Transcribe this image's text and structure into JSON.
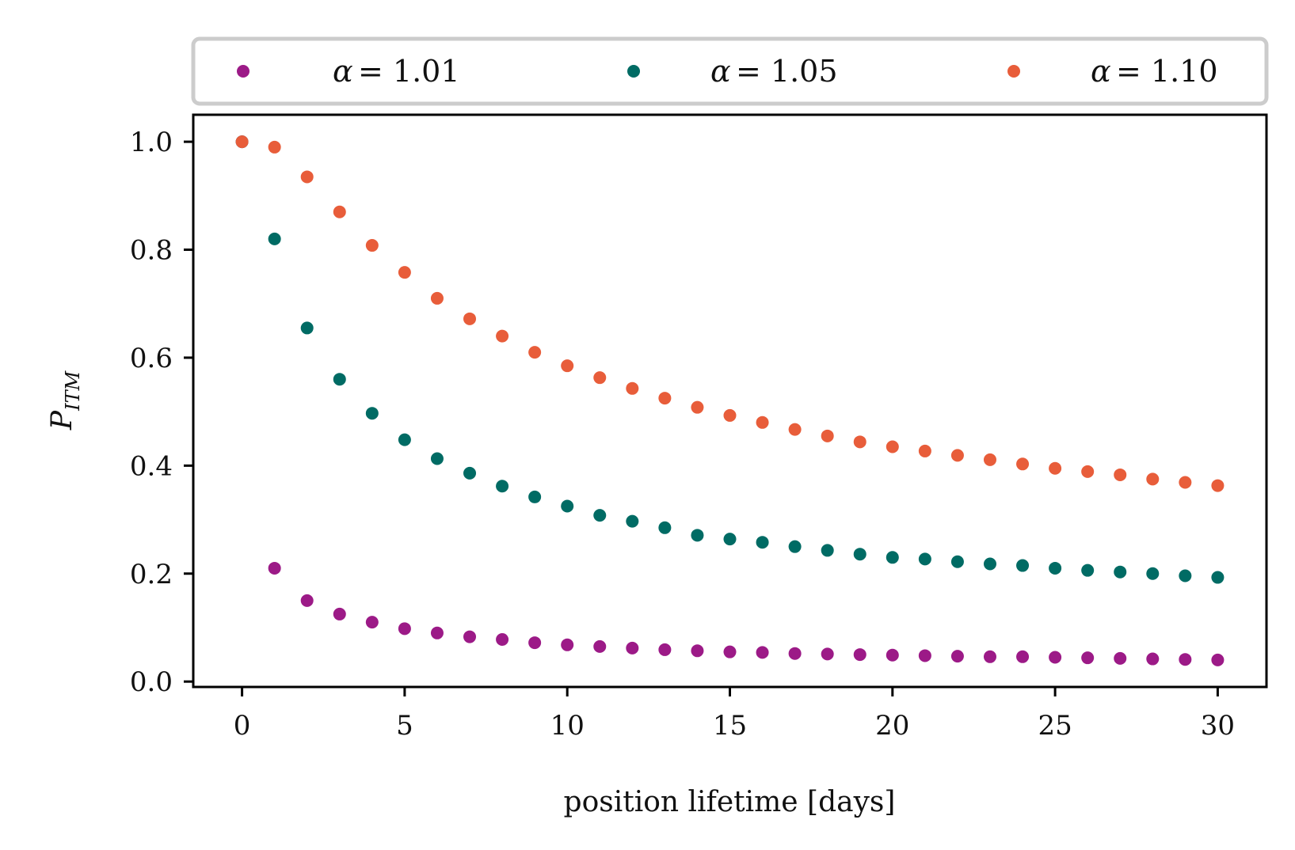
{
  "chart_data": {
    "type": "scatter",
    "title": "",
    "xlabel": "position lifetime [days]",
    "ylabel": {
      "main": "P",
      "sub": "ITM"
    },
    "xlim": [
      -1.5,
      31.5
    ],
    "ylim": [
      -0.01,
      1.05
    ],
    "xticks": [
      0,
      5,
      10,
      15,
      20,
      25,
      30
    ],
    "xtick_labels": [
      "0",
      "5",
      "10",
      "15",
      "20",
      "25",
      "30"
    ],
    "yticks": [
      0.0,
      0.2,
      0.4,
      0.6,
      0.8,
      1.0
    ],
    "ytick_labels": [
      "0.0",
      "0.2",
      "0.4",
      "0.6",
      "0.8",
      "1.0"
    ],
    "grid": false,
    "legend_position": "top",
    "x": [
      0,
      1,
      2,
      3,
      4,
      5,
      6,
      7,
      8,
      9,
      10,
      11,
      12,
      13,
      14,
      15,
      16,
      17,
      18,
      19,
      20,
      21,
      22,
      23,
      24,
      25,
      26,
      27,
      28,
      29,
      30
    ],
    "series": [
      {
        "name": "α = 1.01",
        "label_symbol": "α",
        "label_value": "= 1.01",
        "color": "#9c1a87",
        "values": [
          1.0,
          0.21,
          0.15,
          0.125,
          0.11,
          0.098,
          0.09,
          0.083,
          0.078,
          0.072,
          0.068,
          0.065,
          0.062,
          0.059,
          0.057,
          0.055,
          0.054,
          0.052,
          0.051,
          0.05,
          0.049,
          0.048,
          0.047,
          0.046,
          0.046,
          0.045,
          0.044,
          0.043,
          0.042,
          0.041,
          0.04
        ]
      },
      {
        "name": "α = 1.05",
        "label_symbol": "α",
        "label_value": "= 1.05",
        "color": "#006b64",
        "values": [
          1.0,
          0.82,
          0.655,
          0.56,
          0.497,
          0.448,
          0.413,
          0.386,
          0.362,
          0.342,
          0.325,
          0.308,
          0.297,
          0.285,
          0.271,
          0.264,
          0.258,
          0.25,
          0.243,
          0.236,
          0.23,
          0.227,
          0.222,
          0.218,
          0.215,
          0.21,
          0.206,
          0.203,
          0.2,
          0.196,
          0.193
        ]
      },
      {
        "name": "α = 1.10",
        "label_symbol": "α",
        "label_value": "= 1.10",
        "color": "#e85d3a",
        "values": [
          1.0,
          0.99,
          0.935,
          0.87,
          0.808,
          0.758,
          0.71,
          0.672,
          0.64,
          0.61,
          0.585,
          0.563,
          0.543,
          0.525,
          0.508,
          0.493,
          0.48,
          0.467,
          0.455,
          0.444,
          0.435,
          0.427,
          0.419,
          0.411,
          0.403,
          0.395,
          0.389,
          0.383,
          0.375,
          0.369,
          0.363
        ]
      }
    ]
  }
}
